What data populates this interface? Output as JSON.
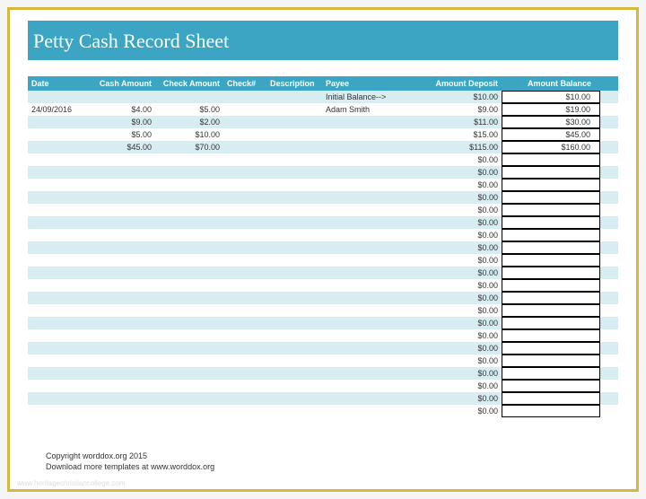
{
  "title": "Petty Cash Record Sheet",
  "columns": {
    "date": "Date",
    "cash": "Cash Amount",
    "check": "Check Amount",
    "checknum": "Check#",
    "desc": "Description",
    "payee": "Payee",
    "deposit": "Amount Deposit",
    "balance": "Amount Balance"
  },
  "rows": [
    {
      "date": "",
      "cash": "",
      "check": "",
      "checknum": "",
      "desc": "",
      "payee": "Initial Balance-->",
      "deposit": "$10.00",
      "balance": "$10.00"
    },
    {
      "date": "24/09/2016",
      "cash": "$4.00",
      "check": "$5.00",
      "checknum": "",
      "desc": "",
      "payee": "Adam Smith",
      "deposit": "$9.00",
      "balance": "$19.00"
    },
    {
      "date": "",
      "cash": "$9.00",
      "check": "$2.00",
      "checknum": "",
      "desc": "",
      "payee": "",
      "deposit": "$11.00",
      "balance": "$30.00"
    },
    {
      "date": "",
      "cash": "$5.00",
      "check": "$10.00",
      "checknum": "",
      "desc": "",
      "payee": "",
      "deposit": "$15.00",
      "balance": "$45.00"
    },
    {
      "date": "",
      "cash": "$45.00",
      "check": "$70.00",
      "checknum": "",
      "desc": "",
      "payee": "",
      "deposit": "$115.00",
      "balance": "$160.00"
    },
    {
      "date": "",
      "cash": "",
      "check": "",
      "checknum": "",
      "desc": "",
      "payee": "",
      "deposit": "$0.00",
      "balance": ""
    },
    {
      "date": "",
      "cash": "",
      "check": "",
      "checknum": "",
      "desc": "",
      "payee": "",
      "deposit": "$0.00",
      "balance": ""
    },
    {
      "date": "",
      "cash": "",
      "check": "",
      "checknum": "",
      "desc": "",
      "payee": "",
      "deposit": "$0.00",
      "balance": ""
    },
    {
      "date": "",
      "cash": "",
      "check": "",
      "checknum": "",
      "desc": "",
      "payee": "",
      "deposit": "$0.00",
      "balance": ""
    },
    {
      "date": "",
      "cash": "",
      "check": "",
      "checknum": "",
      "desc": "",
      "payee": "",
      "deposit": "$0.00",
      "balance": ""
    },
    {
      "date": "",
      "cash": "",
      "check": "",
      "checknum": "",
      "desc": "",
      "payee": "",
      "deposit": "$0.00",
      "balance": ""
    },
    {
      "date": "",
      "cash": "",
      "check": "",
      "checknum": "",
      "desc": "",
      "payee": "",
      "deposit": "$0.00",
      "balance": ""
    },
    {
      "date": "",
      "cash": "",
      "check": "",
      "checknum": "",
      "desc": "",
      "payee": "",
      "deposit": "$0.00",
      "balance": ""
    },
    {
      "date": "",
      "cash": "",
      "check": "",
      "checknum": "",
      "desc": "",
      "payee": "",
      "deposit": "$0.00",
      "balance": ""
    },
    {
      "date": "",
      "cash": "",
      "check": "",
      "checknum": "",
      "desc": "",
      "payee": "",
      "deposit": "$0.00",
      "balance": ""
    },
    {
      "date": "",
      "cash": "",
      "check": "",
      "checknum": "",
      "desc": "",
      "payee": "",
      "deposit": "$0.00",
      "balance": ""
    },
    {
      "date": "",
      "cash": "",
      "check": "",
      "checknum": "",
      "desc": "",
      "payee": "",
      "deposit": "$0.00",
      "balance": ""
    },
    {
      "date": "",
      "cash": "",
      "check": "",
      "checknum": "",
      "desc": "",
      "payee": "",
      "deposit": "$0.00",
      "balance": ""
    },
    {
      "date": "",
      "cash": "",
      "check": "",
      "checknum": "",
      "desc": "",
      "payee": "",
      "deposit": "$0.00",
      "balance": ""
    },
    {
      "date": "",
      "cash": "",
      "check": "",
      "checknum": "",
      "desc": "",
      "payee": "",
      "deposit": "$0.00",
      "balance": ""
    },
    {
      "date": "",
      "cash": "",
      "check": "",
      "checknum": "",
      "desc": "",
      "payee": "",
      "deposit": "$0.00",
      "balance": ""
    },
    {
      "date": "",
      "cash": "",
      "check": "",
      "checknum": "",
      "desc": "",
      "payee": "",
      "deposit": "$0.00",
      "balance": ""
    },
    {
      "date": "",
      "cash": "",
      "check": "",
      "checknum": "",
      "desc": "",
      "payee": "",
      "deposit": "$0.00",
      "balance": ""
    },
    {
      "date": "",
      "cash": "",
      "check": "",
      "checknum": "",
      "desc": "",
      "payee": "",
      "deposit": "$0.00",
      "balance": ""
    },
    {
      "date": "",
      "cash": "",
      "check": "",
      "checknum": "",
      "desc": "",
      "payee": "",
      "deposit": "$0.00",
      "balance": ""
    },
    {
      "date": "",
      "cash": "",
      "check": "",
      "checknum": "",
      "desc": "",
      "payee": "",
      "deposit": "$0.00",
      "balance": ""
    }
  ],
  "footer": {
    "line1": "Copyright worddox.org 2015",
    "line2": "Download more templates at www.worddox.org"
  },
  "watermark": "www.heritagechristiancollege.com",
  "colors": {
    "frame_border": "#d4b840",
    "header_bg": "#3ca5c3",
    "alt_row_bg": "#d8edf2",
    "text": "#333333",
    "white": "#ffffff"
  }
}
